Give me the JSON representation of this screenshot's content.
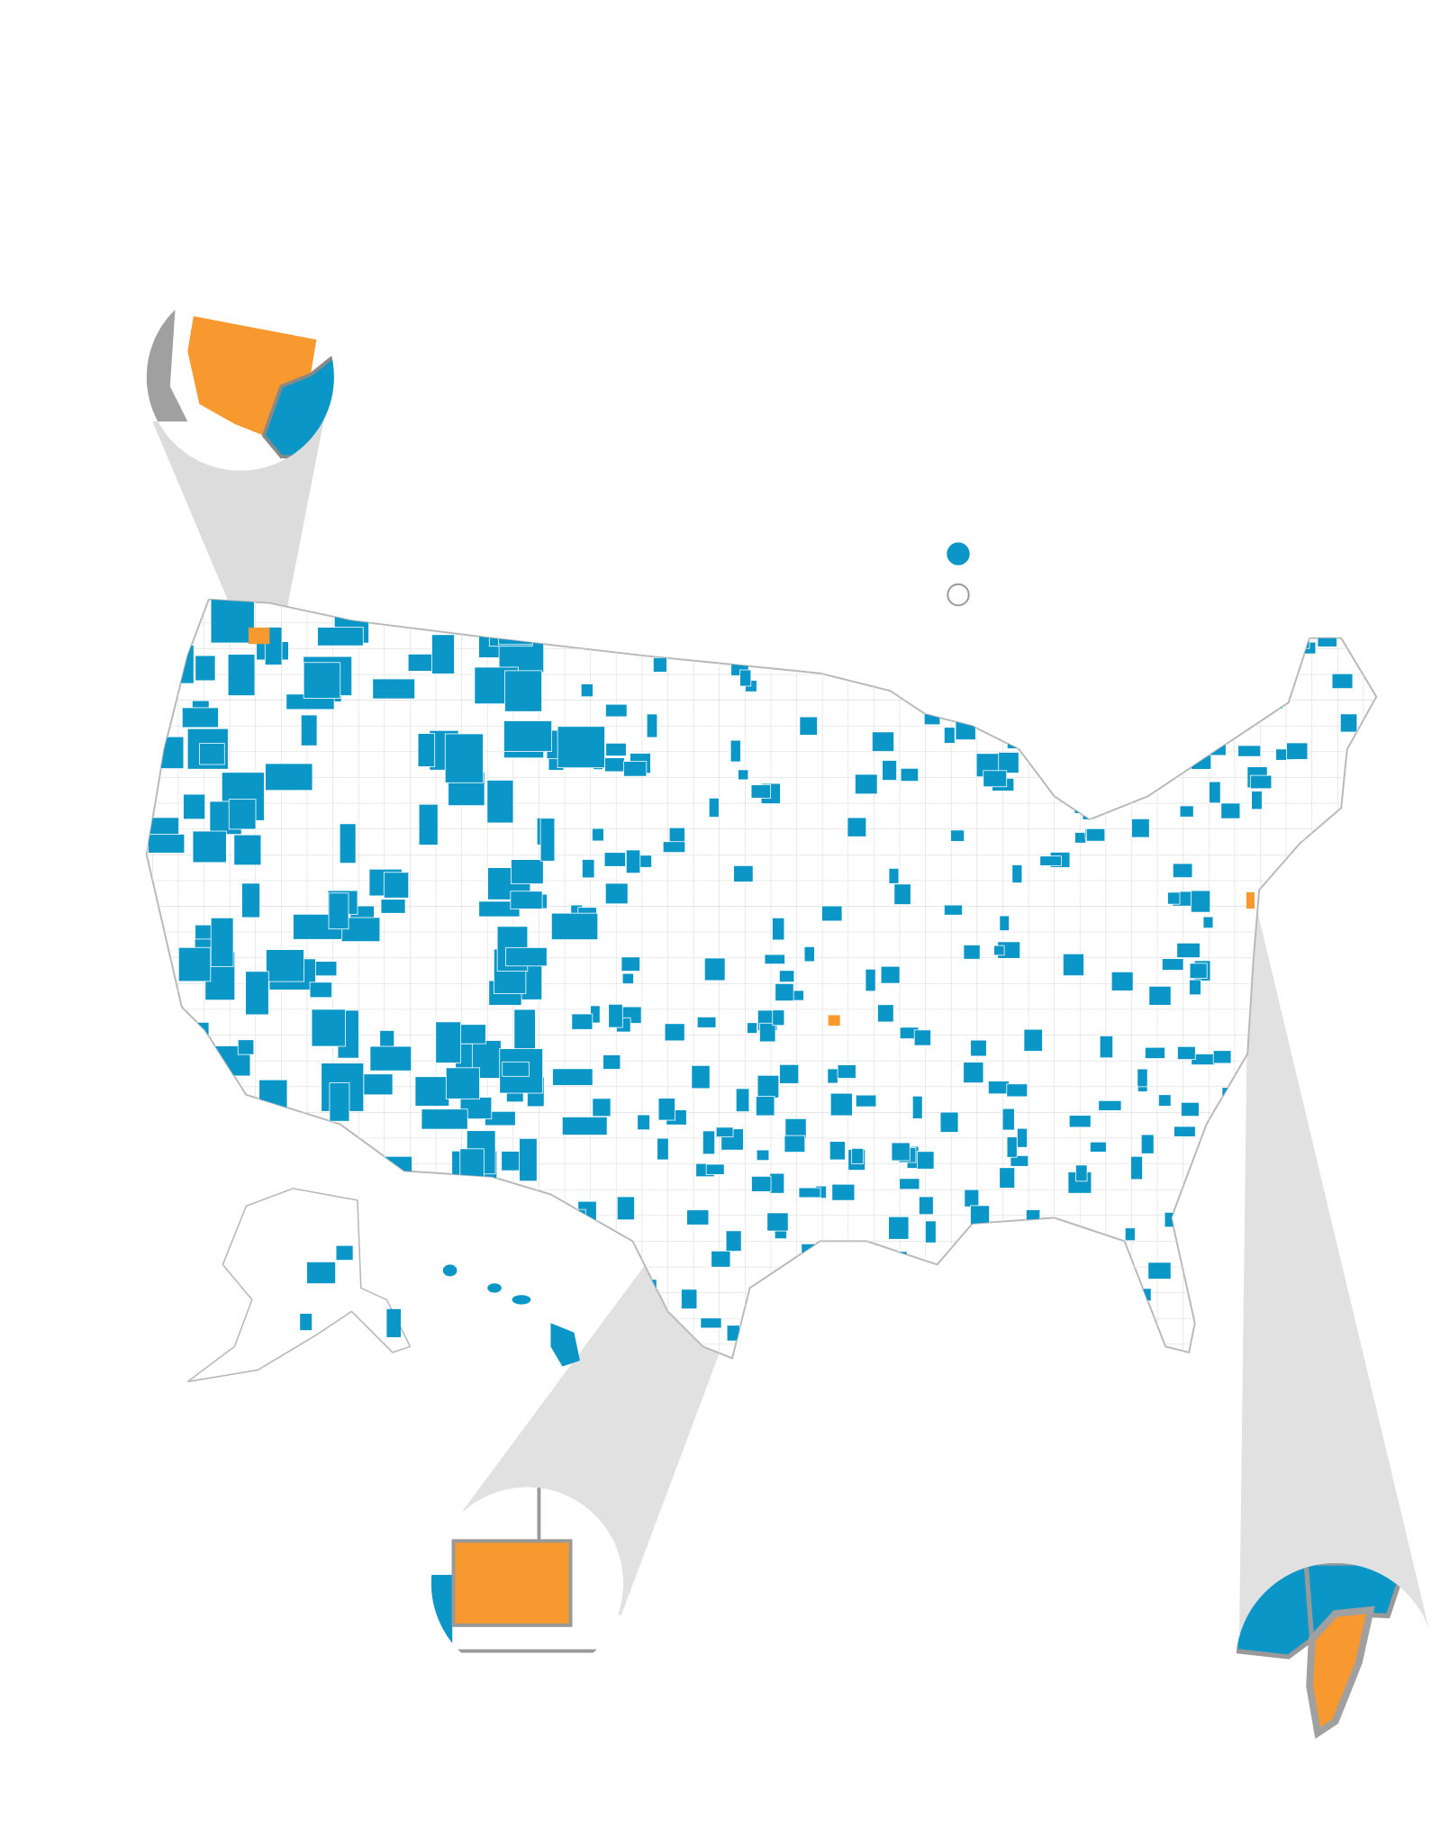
{
  "legend": {
    "items": [
      {
        "color": "#0b96c8"
      },
      {
        "color": "#ffffff"
      }
    ]
  },
  "highlight_color": "#f7992f"
}
